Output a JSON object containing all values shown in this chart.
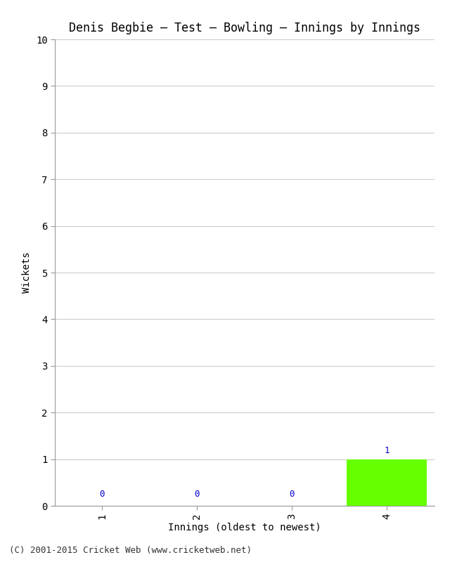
{
  "title": "Denis Begbie – Test – Bowling – Innings by Innings",
  "xlabel": "Innings (oldest to newest)",
  "ylabel": "Wickets",
  "innings": [
    1,
    2,
    3,
    4
  ],
  "wickets": [
    0,
    0,
    0,
    1
  ],
  "zero_color": "#0000cc",
  "nonzero_color": "#66ff00",
  "ylim": [
    0,
    10
  ],
  "yticks": [
    0,
    1,
    2,
    3,
    4,
    5,
    6,
    7,
    8,
    9,
    10
  ],
  "xtick_labels": [
    "1",
    "2",
    "3",
    "4"
  ],
  "background_color": "#ffffff",
  "grid_color": "#cccccc",
  "title_fontsize": 12,
  "axis_label_fontsize": 10,
  "tick_fontsize": 10,
  "annotation_fontsize": 9,
  "footer_text": "(C) 2001-2015 Cricket Web (www.cricketweb.net)",
  "footer_fontsize": 9,
  "bar_width": 0.85
}
